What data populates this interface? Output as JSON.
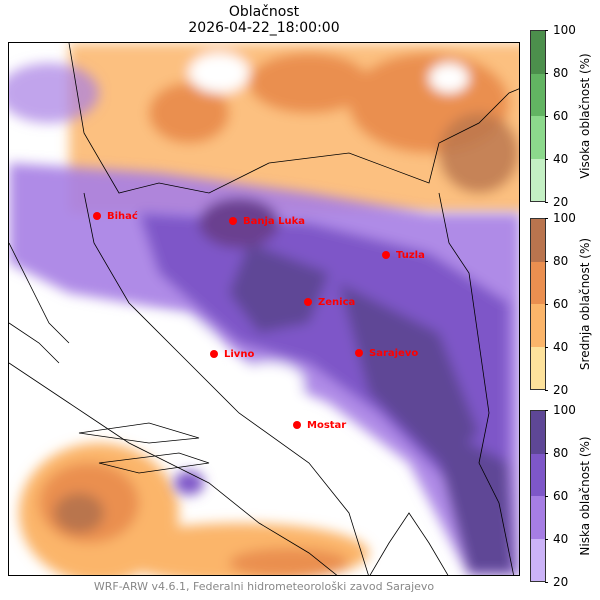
{
  "title": "Oblačnost",
  "datetime": "2026-04-22_18:00:00",
  "footer": "WRF-ARW v4.6.1, Federalni hidrometeorološki zavod Sarajevo",
  "cities": [
    "Bihać",
    "Banja Luka",
    "Tuzla",
    "Zenica",
    "Livno",
    "Sarajevo",
    "Mostar"
  ],
  "colorbars": [
    {
      "label": "Visoka oblačnost (%)",
      "ticks": [
        "20",
        "40",
        "60",
        "80",
        "100"
      ],
      "colors": [
        "#c4f0c4",
        "#8cd98c",
        "#62b462",
        "#4c8f4c"
      ]
    },
    {
      "label": "Srednja oblačnost (%)",
      "ticks": [
        "20",
        "40",
        "60",
        "80",
        "100"
      ],
      "colors": [
        "#fde29c",
        "#fbb56a",
        "#ea8f50",
        "#b9744e"
      ]
    },
    {
      "label": "Niska oblačnost (%)",
      "ticks": [
        "20",
        "40",
        "60",
        "80",
        "100"
      ],
      "colors": [
        "#cbb3f7",
        "#a67ee4",
        "#7e57c8",
        "#5e4796"
      ]
    }
  ]
}
